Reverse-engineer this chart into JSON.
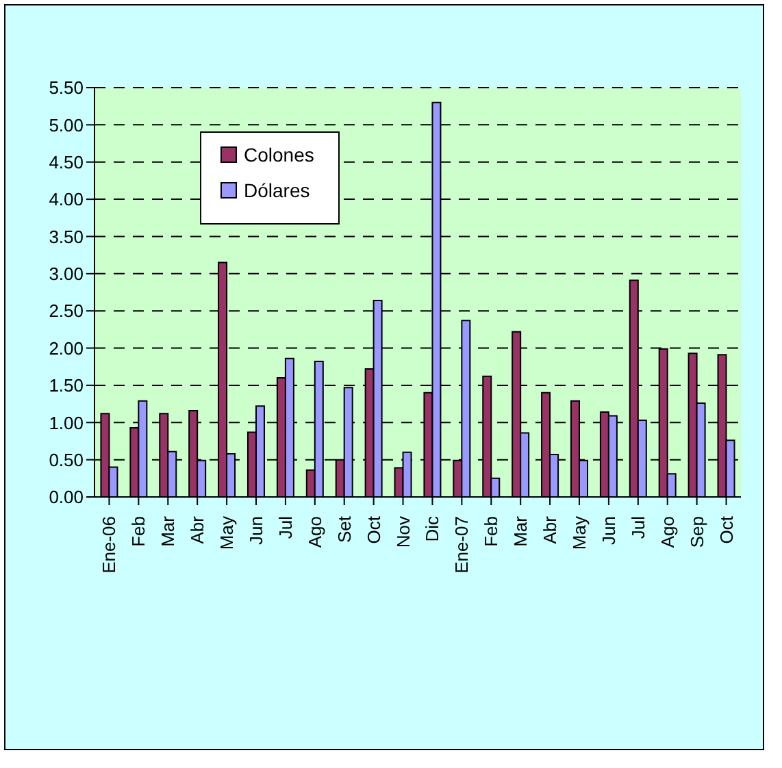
{
  "chart_data": {
    "type": "bar",
    "categories": [
      "Ene-06",
      "Feb",
      "Mar",
      "Abr",
      "May",
      "Jun",
      "Jul",
      "Ago",
      "Set",
      "Oct",
      "Nov",
      "Dic",
      "Ene-07",
      "Feb",
      "Mar",
      "Abr",
      "May",
      "Jun",
      "Jul",
      "Ago",
      "Sep",
      "Oct"
    ],
    "series": [
      {
        "name": "Colones",
        "color": "#993366",
        "values": [
          1.12,
          0.93,
          1.12,
          1.16,
          3.15,
          0.87,
          1.6,
          0.36,
          0.5,
          1.72,
          0.39,
          1.4,
          0.49,
          1.62,
          2.22,
          1.4,
          1.29,
          1.14,
          2.91,
          1.99,
          1.93,
          1.91
        ]
      },
      {
        "name": "Dólares",
        "color": "#9999ff",
        "values": [
          0.4,
          1.29,
          0.61,
          0.49,
          0.58,
          1.22,
          1.86,
          1.82,
          1.47,
          2.64,
          0.6,
          5.3,
          2.37,
          0.25,
          0.86,
          0.57,
          0.49,
          1.09,
          1.03,
          0.31,
          1.26,
          0.76
        ]
      }
    ],
    "ylim": [
      0,
      5.5
    ],
    "yticks": [
      {
        "value": 0,
        "label": "0.00"
      },
      {
        "value": 0.5,
        "label": "0.50"
      },
      {
        "value": 1,
        "label": "1.00"
      },
      {
        "value": 1.5,
        "label": "1.50"
      },
      {
        "value": 2,
        "label": "2.00"
      },
      {
        "value": 2.5,
        "label": "2.50"
      },
      {
        "value": 3,
        "label": "3.00"
      },
      {
        "value": 3.5,
        "label": "3.50"
      },
      {
        "value": 4,
        "label": "4.00"
      },
      {
        "value": 4.5,
        "label": "4.50"
      },
      {
        "value": 5,
        "label": "5.00"
      },
      {
        "value": 5.5,
        "label": "5.50"
      }
    ],
    "grid": "y",
    "legend": "top left"
  }
}
